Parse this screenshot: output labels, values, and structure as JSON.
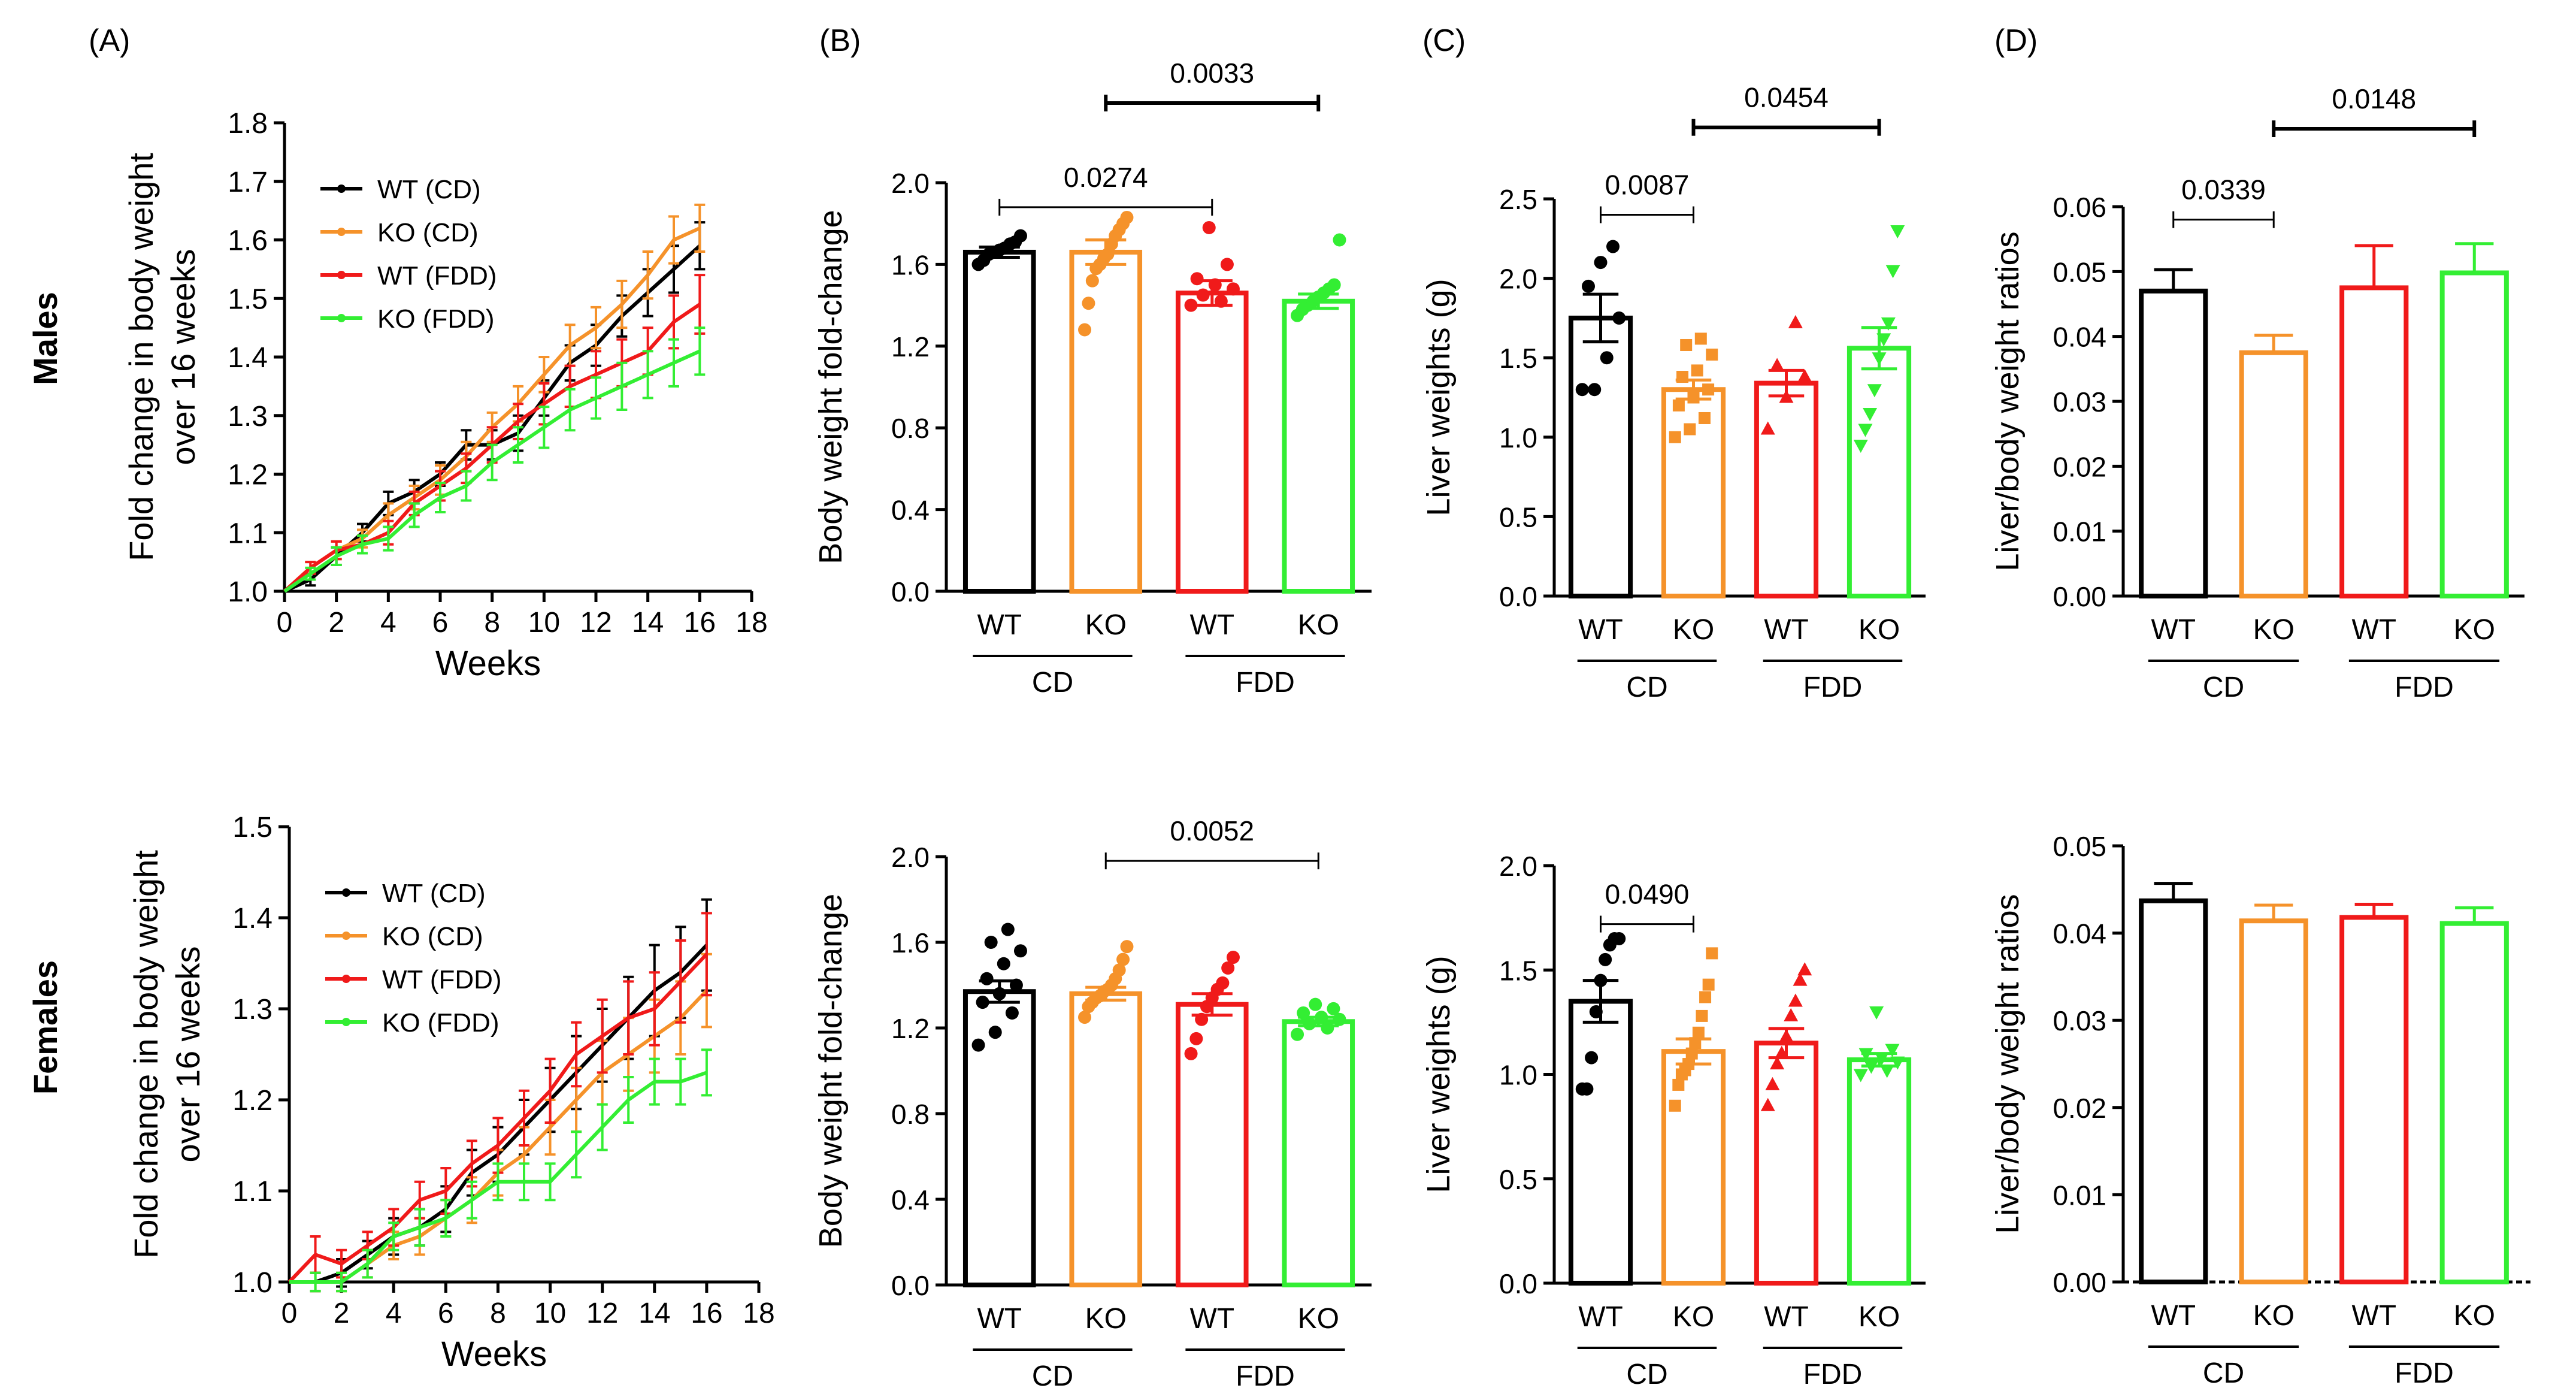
{
  "row_labels": [
    "Males",
    "Females"
  ],
  "panel_letters": [
    "(A)",
    "(B)",
    "(C)",
    "(D)"
  ],
  "group_labels": [
    "CD",
    "FDD"
  ],
  "colors": {
    "WT (CD)": "#000000",
    "KO (CD)": "#f5922a",
    "WT (FDD)": "#f01a1a",
    "KO (FDD)": "#33ee33"
  },
  "chart_data": [
    {
      "id": "A-males",
      "type": "line",
      "panel": "(A)",
      "xlabel": "Weeks",
      "ylabel_lines": [
        "Fold change in body weight",
        "over 16 weeks"
      ],
      "xlim": [
        0,
        18
      ],
      "xticks": [
        0,
        2,
        4,
        6,
        8,
        10,
        12,
        14,
        16,
        18
      ],
      "xtick_labels": [
        "0",
        "2",
        "4",
        "6",
        "8",
        "10",
        "12",
        "14",
        "16",
        "18"
      ],
      "ylim": [
        1.0,
        1.8
      ],
      "yticks": [
        1.0,
        1.1,
        1.2,
        1.3,
        1.4,
        1.5,
        1.6,
        1.7,
        1.8
      ],
      "ytick_labels": [
        "1.0",
        "1.1",
        "1.2",
        "1.3",
        "1.4",
        "1.5",
        "1.6",
        "1.7",
        "1.8"
      ],
      "legend": [
        "WT (CD)",
        "KO (CD)",
        "WT (FDD)",
        "KO (FDD)"
      ],
      "x": [
        0,
        1,
        2,
        3,
        4,
        5,
        6,
        7,
        8,
        9,
        10,
        11,
        12,
        13,
        14,
        15,
        16
      ],
      "series": [
        {
          "name": "WT (CD)",
          "values": [
            1.0,
            1.02,
            1.06,
            1.1,
            1.15,
            1.17,
            1.2,
            1.25,
            1.25,
            1.27,
            1.33,
            1.39,
            1.42,
            1.47,
            1.51,
            1.55,
            1.59
          ],
          "err": [
            0,
            0.01,
            0.015,
            0.015,
            0.02,
            0.02,
            0.02,
            0.025,
            0.025,
            0.03,
            0.03,
            0.03,
            0.035,
            0.035,
            0.04,
            0.04,
            0.04
          ]
        },
        {
          "name": "KO (CD)",
          "values": [
            1.0,
            1.04,
            1.07,
            1.09,
            1.13,
            1.16,
            1.19,
            1.23,
            1.28,
            1.32,
            1.37,
            1.42,
            1.45,
            1.49,
            1.54,
            1.6,
            1.62
          ],
          "err": [
            0,
            0.01,
            0.015,
            0.015,
            0.02,
            0.02,
            0.025,
            0.025,
            0.025,
            0.03,
            0.03,
            0.035,
            0.035,
            0.04,
            0.04,
            0.04,
            0.04
          ]
        },
        {
          "name": "WT (FDD)",
          "values": [
            1.0,
            1.04,
            1.07,
            1.08,
            1.1,
            1.15,
            1.18,
            1.21,
            1.25,
            1.29,
            1.32,
            1.35,
            1.37,
            1.39,
            1.41,
            1.46,
            1.49
          ],
          "err": [
            0,
            0.01,
            0.015,
            0.015,
            0.02,
            0.02,
            0.025,
            0.025,
            0.03,
            0.03,
            0.035,
            0.035,
            0.04,
            0.04,
            0.04,
            0.045,
            0.05
          ]
        },
        {
          "name": "KO (FDD)",
          "values": [
            1.0,
            1.03,
            1.06,
            1.08,
            1.09,
            1.13,
            1.16,
            1.18,
            1.22,
            1.25,
            1.28,
            1.31,
            1.33,
            1.35,
            1.37,
            1.39,
            1.41
          ],
          "err": [
            0,
            0.01,
            0.015,
            0.015,
            0.02,
            0.02,
            0.025,
            0.025,
            0.03,
            0.03,
            0.035,
            0.035,
            0.035,
            0.04,
            0.04,
            0.04,
            0.04
          ]
        }
      ]
    },
    {
      "id": "A-females",
      "type": "line",
      "panel": "",
      "xlabel": "Weeks",
      "ylabel_lines": [
        "Fold change in body weight",
        "over 16 weeks"
      ],
      "xlim": [
        0,
        18
      ],
      "xticks": [
        0,
        2,
        4,
        6,
        8,
        10,
        12,
        14,
        16,
        18
      ],
      "xtick_labels": [
        "0",
        "2",
        "4",
        "6",
        "8",
        "10",
        "12",
        "14",
        "16",
        "18"
      ],
      "ylim": [
        1.0,
        1.5
      ],
      "yticks": [
        1.0,
        1.1,
        1.2,
        1.3,
        1.4,
        1.5
      ],
      "ytick_labels": [
        "1.0",
        "1.1",
        "1.2",
        "1.3",
        "1.4",
        "1.5"
      ],
      "legend": [
        "WT (CD)",
        "KO (CD)",
        "WT (FDD)",
        "KO (FDD)"
      ],
      "x": [
        0,
        1,
        2,
        3,
        4,
        5,
        6,
        7,
        8,
        9,
        10,
        11,
        12,
        13,
        14,
        15,
        16
      ],
      "series": [
        {
          "name": "WT (CD)",
          "values": [
            1.0,
            1.0,
            1.01,
            1.03,
            1.05,
            1.06,
            1.08,
            1.12,
            1.14,
            1.17,
            1.2,
            1.23,
            1.26,
            1.29,
            1.32,
            1.34,
            1.37
          ],
          "err": [
            0,
            0.01,
            0.015,
            0.015,
            0.02,
            0.02,
            0.025,
            0.025,
            0.03,
            0.03,
            0.035,
            0.04,
            0.04,
            0.045,
            0.05,
            0.05,
            0.05
          ]
        },
        {
          "name": "KO (CD)",
          "values": [
            1.0,
            1.0,
            1.0,
            1.02,
            1.04,
            1.05,
            1.07,
            1.09,
            1.12,
            1.14,
            1.17,
            1.2,
            1.23,
            1.25,
            1.27,
            1.29,
            1.32
          ],
          "err": [
            0,
            0.01,
            0.01,
            0.015,
            0.015,
            0.02,
            0.02,
            0.025,
            0.025,
            0.03,
            0.03,
            0.035,
            0.035,
            0.04,
            0.04,
            0.04,
            0.04
          ]
        },
        {
          "name": "WT (FDD)",
          "values": [
            1.0,
            1.03,
            1.02,
            1.04,
            1.06,
            1.09,
            1.1,
            1.13,
            1.15,
            1.18,
            1.21,
            1.25,
            1.27,
            1.29,
            1.3,
            1.33,
            1.36
          ],
          "err": [
            0,
            0.02,
            0.015,
            0.015,
            0.02,
            0.02,
            0.025,
            0.025,
            0.03,
            0.03,
            0.035,
            0.035,
            0.04,
            0.04,
            0.04,
            0.045,
            0.045
          ]
        },
        {
          "name": "KO (FDD)",
          "values": [
            1.0,
            1.0,
            1.0,
            1.02,
            1.05,
            1.06,
            1.07,
            1.09,
            1.11,
            1.11,
            1.11,
            1.14,
            1.17,
            1.2,
            1.22,
            1.22,
            1.23
          ],
          "err": [
            0,
            0.01,
            0.01,
            0.015,
            0.015,
            0.02,
            0.02,
            0.02,
            0.02,
            0.02,
            0.02,
            0.025,
            0.025,
            0.025,
            0.025,
            0.025,
            0.025
          ]
        }
      ]
    },
    {
      "id": "B-males",
      "type": "bar",
      "panel": "(B)",
      "ylabel": "Body weight fold-change",
      "ylim": [
        0,
        2.0
      ],
      "yticks": [
        0,
        0.4,
        0.8,
        1.2,
        1.6,
        2.0
      ],
      "ytick_labels": [
        "0.0",
        "0.4",
        "0.8",
        "1.2",
        "1.6",
        "2.0"
      ],
      "categories": [
        "WT",
        "KO",
        "WT",
        "KO"
      ],
      "groups": [
        "CD",
        "FDD"
      ],
      "values": [
        1.66,
        1.66,
        1.46,
        1.42
      ],
      "sem": [
        0.025,
        0.06,
        0.06,
        0.035
      ],
      "points": [
        [
          1.6,
          1.62,
          1.65,
          1.66,
          1.67,
          1.68,
          1.7,
          1.71,
          1.74
        ],
        [
          1.28,
          1.41,
          1.52,
          1.58,
          1.6,
          1.63,
          1.65,
          1.7,
          1.74,
          1.77,
          1.8,
          1.83
        ],
        [
          1.4,
          1.42,
          1.45,
          1.48,
          1.5,
          1.53,
          1.6,
          1.78
        ],
        [
          1.35,
          1.38,
          1.4,
          1.42,
          1.44,
          1.46,
          1.48,
          1.5,
          1.72
        ]
      ],
      "marker": "circle",
      "comparisons": [
        {
          "from": 0,
          "to": 2,
          "label": "0.0274",
          "y": 1.88
        },
        {
          "from": 1,
          "to": 3,
          "label": "0.0033",
          "y": 2.39
        }
      ]
    },
    {
      "id": "B-females",
      "type": "bar",
      "panel": "",
      "ylabel": "Body weight fold-change",
      "ylim": [
        0,
        2.0
      ],
      "yticks": [
        0,
        0.4,
        0.8,
        1.2,
        1.6,
        2.0
      ],
      "ytick_labels": [
        "0.0",
        "0.4",
        "0.8",
        "1.2",
        "1.6",
        "2.0"
      ],
      "categories": [
        "WT",
        "KO",
        "WT",
        "KO"
      ],
      "groups": [
        "CD",
        "FDD"
      ],
      "values": [
        1.37,
        1.36,
        1.31,
        1.23
      ],
      "sem": [
        0.05,
        0.03,
        0.05,
        0.02
      ],
      "points": [
        [
          1.12,
          1.18,
          1.27,
          1.32,
          1.36,
          1.4,
          1.43,
          1.5,
          1.56,
          1.6,
          1.66
        ],
        [
          1.25,
          1.3,
          1.32,
          1.34,
          1.35,
          1.37,
          1.38,
          1.4,
          1.43,
          1.47,
          1.52,
          1.58
        ],
        [
          1.08,
          1.15,
          1.24,
          1.3,
          1.34,
          1.38,
          1.41,
          1.48,
          1.53
        ],
        [
          1.17,
          1.2,
          1.22,
          1.24,
          1.25,
          1.27,
          1.29,
          1.31
        ]
      ],
      "marker": "circle",
      "comparisons": [
        {
          "from": 1,
          "to": 3,
          "label": "0.0052",
          "y": 1.98
        }
      ]
    },
    {
      "id": "C-males",
      "type": "bar",
      "panel": "(C)",
      "ylabel": "Liver weights (g)",
      "ylim": [
        0,
        2.5
      ],
      "yticks": [
        0,
        0.5,
        1.0,
        1.5,
        2.0,
        2.5
      ],
      "ytick_labels": [
        "0.0",
        "0.5",
        "1.0",
        "1.5",
        "2.0",
        "2.5"
      ],
      "categories": [
        "WT",
        "KO",
        "WT",
        "KO"
      ],
      "groups": [
        "CD",
        "FDD"
      ],
      "values": [
        1.75,
        1.3,
        1.34,
        1.56
      ],
      "sem": [
        0.15,
        0.06,
        0.08,
        0.13
      ],
      "points": [
        [
          1.3,
          1.3,
          1.5,
          1.75,
          1.95,
          2.1,
          2.2
        ],
        [
          1.0,
          1.05,
          1.12,
          1.2,
          1.25,
          1.3,
          1.38,
          1.42,
          1.52,
          1.58,
          1.62
        ],
        [
          1.05,
          1.25,
          1.38,
          1.45,
          1.72
        ],
        [
          0.95,
          1.05,
          1.15,
          1.3,
          1.5,
          1.62,
          1.72,
          2.05,
          2.3
        ]
      ],
      "marker": "mixed",
      "comparisons": [
        {
          "from": 0,
          "to": 1,
          "label": "0.0087",
          "y": 2.4
        },
        {
          "from": 1,
          "to": 3,
          "label": "0.0454",
          "y": 2.95
        }
      ]
    },
    {
      "id": "C-females",
      "type": "bar",
      "panel": "",
      "ylabel": "Liver weights (g)",
      "ylim": [
        0,
        2.0
      ],
      "yticks": [
        0,
        0.5,
        1.0,
        1.5,
        2.0
      ],
      "ytick_labels": [
        "0.0",
        "0.5",
        "1.0",
        "1.5",
        "2.0"
      ],
      "categories": [
        "WT",
        "KO",
        "WT",
        "KO"
      ],
      "groups": [
        "CD",
        "FDD"
      ],
      "values": [
        1.35,
        1.11,
        1.15,
        1.07
      ],
      "sem": [
        0.1,
        0.06,
        0.07,
        0.03
      ],
      "points": [
        [
          0.93,
          0.93,
          1.08,
          1.3,
          1.45,
          1.55,
          1.62,
          1.65,
          1.65
        ],
        [
          0.85,
          0.95,
          1.0,
          1.02,
          1.05,
          1.1,
          1.15,
          1.2,
          1.28,
          1.37,
          1.43,
          1.58
        ],
        [
          0.85,
          0.95,
          1.05,
          1.1,
          1.18,
          1.28,
          1.35,
          1.45,
          1.5
        ],
        [
          1.0,
          1.02,
          1.04,
          1.06,
          1.08,
          1.1,
          1.12,
          1.3
        ]
      ],
      "marker": "mixed",
      "comparisons": [
        {
          "from": 0,
          "to": 1,
          "label": "0.0490",
          "y": 1.72
        }
      ]
    },
    {
      "id": "D-males",
      "type": "bar",
      "panel": "(D)",
      "ylabel": "Liver/body weight ratios",
      "ylim": [
        0,
        0.06
      ],
      "yticks": [
        0,
        0.01,
        0.02,
        0.03,
        0.04,
        0.05,
        0.06
      ],
      "ytick_labels": [
        "0.00",
        "0.01",
        "0.02",
        "0.03",
        "0.04",
        "0.05",
        "0.06"
      ],
      "categories": [
        "WT",
        "KO",
        "WT",
        "KO"
      ],
      "groups": [
        "CD",
        "FDD"
      ],
      "values": [
        0.047,
        0.0375,
        0.0475,
        0.0498
      ],
      "sem": [
        0.0033,
        0.0027,
        0.0065,
        0.0045
      ],
      "points": [
        [],
        [],
        [],
        []
      ],
      "marker": "none",
      "comparisons": [
        {
          "from": 0,
          "to": 1,
          "label": "0.0339",
          "y": 0.058
        },
        {
          "from": 1,
          "to": 3,
          "label": "0.0148",
          "y": 0.072
        }
      ]
    },
    {
      "id": "D-females",
      "type": "bar",
      "panel": "",
      "ylabel": "Liver/body weight ratios",
      "ylim": [
        0,
        0.05
      ],
      "yticks": [
        0,
        0.01,
        0.02,
        0.03,
        0.04,
        0.05
      ],
      "ytick_labels": [
        "0.00",
        "0.01",
        "0.02",
        "0.03",
        "0.04",
        "0.05"
      ],
      "categories": [
        "WT",
        "KO",
        "WT",
        "KO"
      ],
      "groups": [
        "CD",
        "FDD"
      ],
      "values": [
        0.0437,
        0.0414,
        0.0418,
        0.0411
      ],
      "sem": [
        0.002,
        0.0018,
        0.0015,
        0.0018
      ],
      "points": [
        [],
        [],
        [],
        []
      ],
      "marker": "none",
      "dashed_zero": true,
      "comparisons": []
    }
  ]
}
